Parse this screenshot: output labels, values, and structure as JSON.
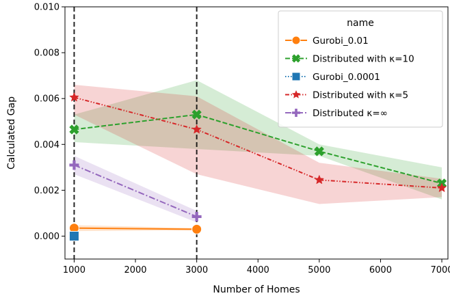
{
  "chart_data": {
    "type": "line",
    "title": "",
    "xlabel": "Number of Homes",
    "ylabel": "Calculated Gap",
    "xlim": [
      850,
      7100
    ],
    "ylim": [
      -0.001,
      0.01
    ],
    "xticks": [
      1000,
      2000,
      3000,
      4000,
      5000,
      6000,
      7000
    ],
    "xtick_labels": [
      "1000",
      "2000",
      "3000",
      "4000",
      "5000",
      "6000",
      "7000"
    ],
    "yticks": [
      0.0,
      0.002,
      0.004,
      0.006,
      0.008,
      0.01
    ],
    "ytick_labels": [
      "0.000",
      "0.002",
      "0.004",
      "0.006",
      "0.008",
      "0.010"
    ],
    "grid": false,
    "legend": {
      "title": "name",
      "placement": "top-right"
    },
    "vertical_lines": [
      1000,
      3000
    ],
    "series": [
      {
        "name": "Gurobi_0.01",
        "color": "#ff7f0e",
        "marker": "circle",
        "dash": "solid",
        "x": [
          1000,
          3000
        ],
        "y": [
          0.00035,
          0.0003
        ],
        "lower": [
          0.00022,
          0.00025
        ],
        "upper": [
          0.00048,
          0.00035
        ]
      },
      {
        "name": "Distributed with κ=10",
        "color": "#2ca02c",
        "marker": "x",
        "dash": "dashed",
        "x": [
          1000,
          3000,
          5000,
          7000
        ],
        "y": [
          0.00465,
          0.0053,
          0.0037,
          0.0023
        ],
        "lower": [
          0.0041,
          0.0038,
          0.0035,
          0.0016
        ],
        "upper": [
          0.0053,
          0.0068,
          0.004,
          0.003
        ]
      },
      {
        "name": "Gurobi_0.0001",
        "color": "#1f77b4",
        "marker": "square",
        "dash": "dotted",
        "x": [
          1000
        ],
        "y": [
          0.0
        ],
        "lower": [
          0.0
        ],
        "upper": [
          0.0
        ]
      },
      {
        "name": "Distributed with κ=5",
        "color": "#d62728",
        "marker": "star",
        "dash": "dashdotdot",
        "x": [
          1000,
          3000,
          5000,
          7000
        ],
        "y": [
          0.00605,
          0.00465,
          0.00245,
          0.0021
        ],
        "lower": [
          0.0053,
          0.0027,
          0.0014,
          0.0017
        ],
        "upper": [
          0.0066,
          0.0061,
          0.0032,
          0.0025
        ]
      },
      {
        "name": "Distributed κ=∞",
        "color": "#9467bd",
        "marker": "plus",
        "dash": "dashdot",
        "x": [
          1000,
          3000
        ],
        "y": [
          0.0031,
          0.00085
        ],
        "lower": [
          0.0027,
          0.0006
        ],
        "upper": [
          0.0035,
          0.0011
        ]
      }
    ]
  }
}
